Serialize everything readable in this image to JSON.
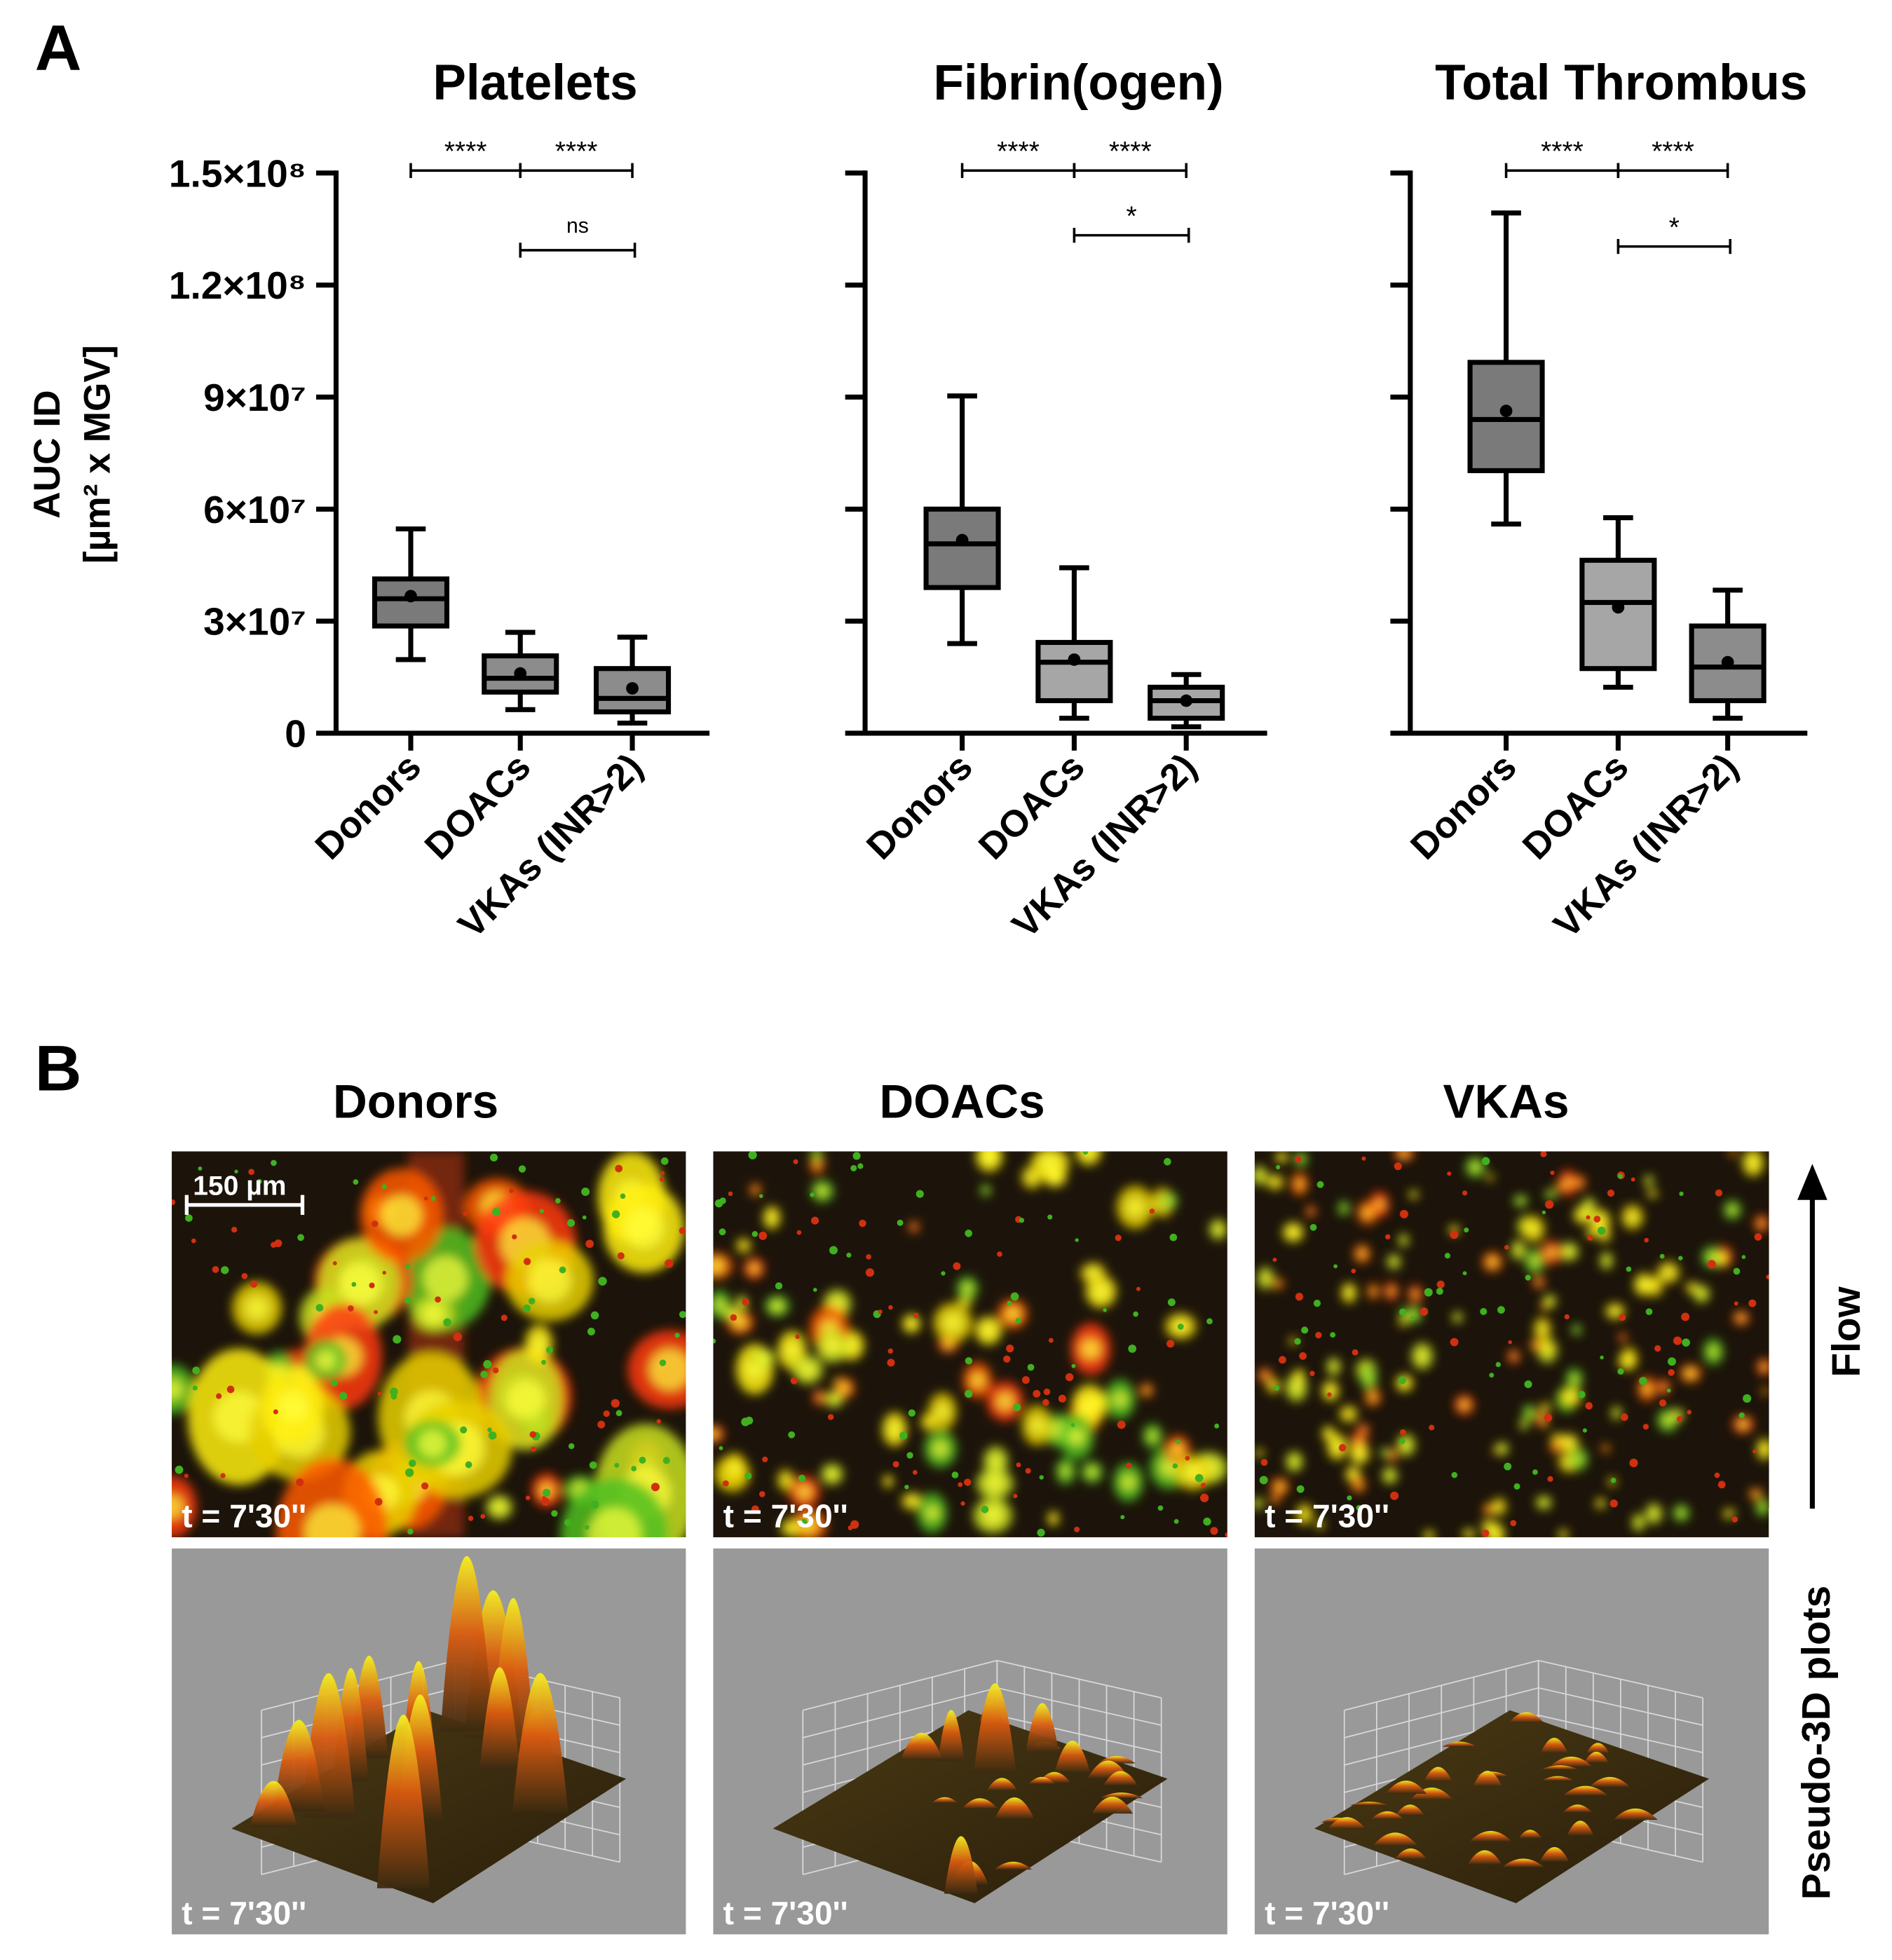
{
  "panel_labels": [
    "A",
    "B"
  ],
  "chart_data": [
    {
      "type": "box",
      "title": "Platelets",
      "ylabel": [
        "AUC ID",
        "[µm² x MGV]"
      ],
      "categories": [
        "Donors",
        "DOACs",
        "VKAs (INR>2)"
      ],
      "colors": [
        "#7a7a7a",
        "#8c8c8c",
        "#8c8c8c"
      ],
      "boxes": [
        {
          "min": 19700000,
          "q1": 28700000,
          "median": 36000000,
          "q3": 41300000,
          "max": 54700000,
          "mean": 36700000
        },
        {
          "min": 6300000,
          "q1": 11000000,
          "median": 14700000,
          "q3": 20700000,
          "max": 27000000,
          "mean": 16000000
        },
        {
          "min": 2700000,
          "q1": 5700000,
          "median": 9300000,
          "q3": 17300000,
          "max": 25700000,
          "mean": 12000000
        }
      ],
      "ylim": [
        0,
        150000000
      ],
      "yticks": [
        0,
        {
          "value": 30000000,
          "label": "3×10⁷"
        },
        {
          "value": 60000000,
          "label": "6×10⁷"
        },
        {
          "value": 90000000,
          "label": "9×10⁷"
        },
        {
          "value": 120000000,
          "label": "1.2×10⁸"
        },
        {
          "value": 150000000,
          "label": "1.5×10⁸"
        }
      ],
      "brackets": [
        {
          "from": 0,
          "to": 1,
          "label": "****"
        },
        {
          "from": 1,
          "to": 2,
          "label": "****"
        },
        {
          "from": 1,
          "to": 2,
          "label": "ns"
        }
      ]
    },
    {
      "type": "box",
      "title": "Fibrin(ogen)",
      "categories": [
        "Donors",
        "DOACs",
        "VKAs (INR>2)"
      ],
      "colors": [
        "#7a7a7a",
        "#a6a6a6",
        "#a6a6a6"
      ],
      "boxes": [
        {
          "min": 24000000,
          "q1": 39000000,
          "median": 50700000,
          "q3": 60000000,
          "max": 90300000,
          "mean": 51700000
        },
        {
          "min": 4000000,
          "q1": 8700000,
          "median": 19000000,
          "q3": 24300000,
          "max": 44300000,
          "mean": 19700000
        },
        {
          "min": 1700000,
          "q1": 4000000,
          "median": 8700000,
          "q3": 12300000,
          "max": 15700000,
          "mean": 8700000
        }
      ],
      "ylim": [
        0,
        150000000
      ],
      "yticks": [
        0,
        30000000,
        60000000,
        90000000,
        120000000,
        150000000
      ],
      "brackets": [
        {
          "from": 0,
          "to": 1,
          "label": "****"
        },
        {
          "from": 1,
          "to": 2,
          "label": "****"
        },
        {
          "from": 1,
          "to": 2,
          "label": "*"
        }
      ]
    },
    {
      "type": "box",
      "title": "Total Thrombus",
      "categories": [
        "Donors",
        "DOACs",
        "VKAs (INR>2)"
      ],
      "colors": [
        "#7a7a7a",
        "#a6a6a6",
        "#8c8c8c"
      ],
      "boxes": [
        {
          "min": 56000000,
          "q1": 70300000,
          "median": 84000000,
          "q3": 99300000,
          "max": 139300000,
          "mean": 86300000
        },
        {
          "min": 12300000,
          "q1": 17300000,
          "median": 35000000,
          "q3": 46300000,
          "max": 57700000,
          "mean": 33700000
        },
        {
          "min": 4000000,
          "q1": 8700000,
          "median": 17700000,
          "q3": 28700000,
          "max": 38300000,
          "mean": 19000000
        }
      ],
      "ylim": [
        0,
        150000000
      ],
      "yticks": [
        0,
        30000000,
        60000000,
        90000000,
        120000000,
        150000000
      ],
      "brackets": [
        {
          "from": 0,
          "to": 1,
          "label": "****"
        },
        {
          "from": 1,
          "to": 2,
          "label": "****"
        },
        {
          "from": 1,
          "to": 2,
          "label": "*"
        }
      ]
    }
  ],
  "panel_b": {
    "titles": [
      "Donors",
      "DOACs",
      "VKAs"
    ],
    "time_labels": [
      "t = 7'30''",
      "t = 7'30''",
      "t = 7'30''",
      "t = 7'30''",
      "t = 7'30''",
      "t = 7'30''"
    ],
    "scale_bar": "150 µm",
    "flow": "Flow",
    "side_label": "Pseudo-3D plots"
  }
}
